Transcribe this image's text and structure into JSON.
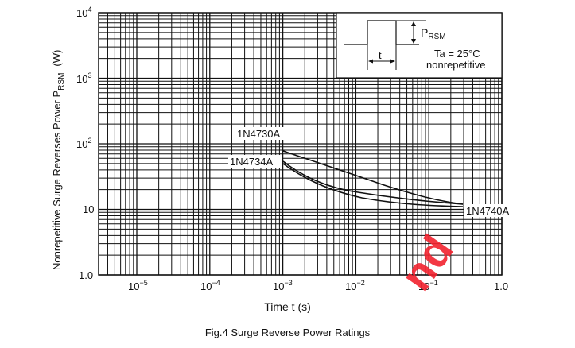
{
  "chart_data": {
    "type": "line",
    "title": "Fig.4   Surge Reverse Power Ratings",
    "xlabel": "Time  t  (s)",
    "ylabel": "Nonrepetitive Surge Reverses Power P_RSM  (W)",
    "xscale": "log",
    "yscale": "log",
    "xlim": [
      3e-06,
      1.0
    ],
    "ylim": [
      1.0,
      10000
    ],
    "x_tick_labels": [
      "10^-5",
      "10^-4",
      "10^-3",
      "10^-2",
      "10^-1",
      "1.0"
    ],
    "y_tick_labels": [
      "1.0",
      "10",
      "10^2",
      "10^3",
      "10^4"
    ],
    "grid": true,
    "series": [
      {
        "name": "1N4730A",
        "x": [
          0.001,
          0.003,
          0.01,
          0.03,
          0.1,
          0.3
        ],
        "y": [
          78,
          52,
          33,
          22,
          15,
          12
        ]
      },
      {
        "name": "1N4734A",
        "x": [
          0.001,
          0.003,
          0.01,
          0.03,
          0.1,
          0.3
        ],
        "y": [
          55,
          32,
          21,
          16,
          13,
          12
        ]
      },
      {
        "name": "1N4740A",
        "x": [
          0.001,
          0.003,
          0.01,
          0.03,
          0.1,
          0.3
        ],
        "y": [
          52,
          29,
          18,
          14,
          12,
          11
        ]
      }
    ],
    "annotations": [
      "1N4730A",
      "1N4734A",
      "1N4740A"
    ],
    "inset": {
      "symbol": "P_RSM",
      "pulse_label": "t",
      "condition": "Ta = 25°C",
      "note": "nonrepetitive"
    }
  },
  "labels": {
    "y_axis_main": "Nonrepetitive Surge Reverses Power P",
    "y_axis_sub": "RSM",
    "y_axis_unit": "(W)",
    "x_axis": "Time  t  (s)",
    "caption": "Fig.4   Surge Reverse Power Ratings",
    "series_1": "1N4730A",
    "series_2": "1N4734A",
    "series_3": "1N4740A",
    "inset_p": "P",
    "inset_p_sub": "RSM",
    "inset_t": "t",
    "inset_ta": "Ta = 25°C",
    "inset_note": "nonrepetitive",
    "y_ticks": {
      "t4": "10",
      "t4e": "4",
      "t3": "10",
      "t3e": "3",
      "t2": "10",
      "t2e": "2",
      "t1": "10",
      "t0": "1.0"
    },
    "x_ticks": {
      "m5": "10",
      "m5e": "−5",
      "m4": "10",
      "m4e": "−4",
      "m3": "10",
      "m3e": "−3",
      "m2": "10",
      "m2e": "−2",
      "m1": "10",
      "m1e": "−1",
      "one": "1.0"
    },
    "watermark": "nd"
  }
}
